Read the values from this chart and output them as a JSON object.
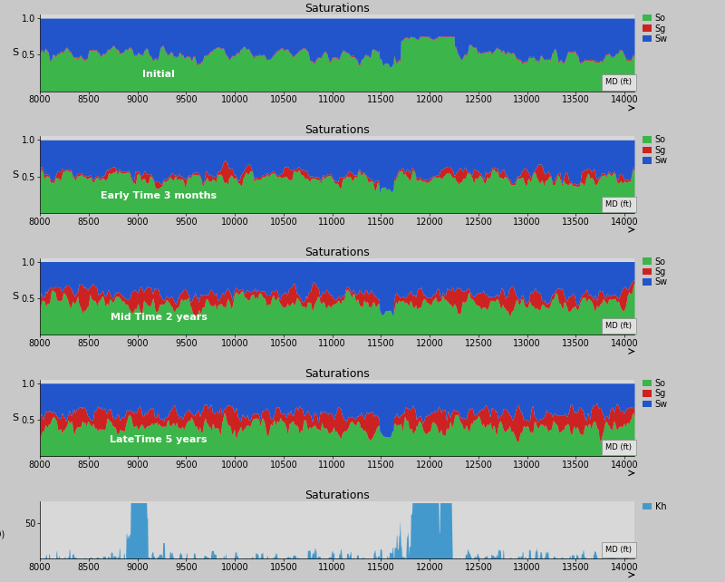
{
  "title": "Saturations",
  "x_min": 8000,
  "x_max": 14100,
  "x_ticks": [
    8000,
    8500,
    9000,
    9500,
    10000,
    10500,
    11000,
    11500,
    12000,
    12500,
    13000,
    13500,
    14000
  ],
  "panels": [
    {
      "label": "Initial"
    },
    {
      "label": "Early Time 3 months"
    },
    {
      "label": "Mid Time 2 years"
    },
    {
      "label": "LateTime 5 years"
    }
  ],
  "color_so": "#3cb54a",
  "color_sg": "#cc2222",
  "color_sw": "#2255cc",
  "color_kh": "#4499cc",
  "bg_color": "#c8c8c8",
  "plot_bg": "#d8d8d8",
  "ylabel_sat": "S",
  "ylabel_perm": "K (mD)",
  "xlabel": "MD (ft)",
  "ylim_sat": [
    0.0,
    1.05
  ],
  "yticks_sat": [
    0.5,
    1.0
  ],
  "ylim_perm": [
    0,
    80
  ],
  "yticks_perm": [
    50
  ],
  "n_points": 1200
}
